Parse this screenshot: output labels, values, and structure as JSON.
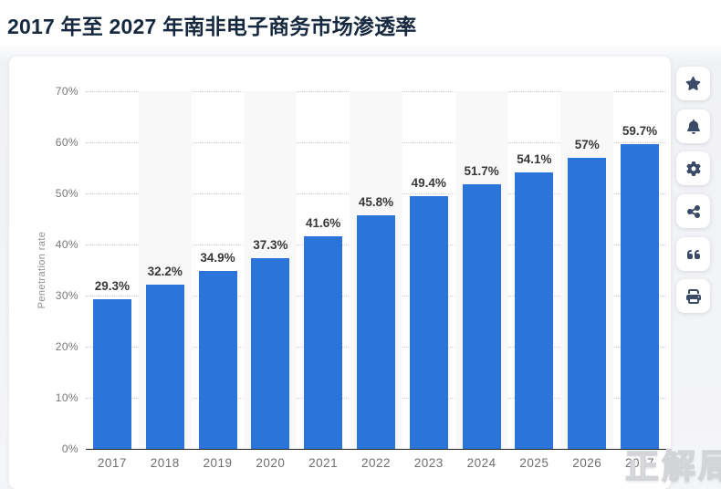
{
  "page": {
    "title": "2017 年至 2027 年南非电子商务市场渗透率"
  },
  "chart_data": {
    "type": "bar",
    "title": "2017 年至 2027 年南非电子商务市场渗透率",
    "categories": [
      "2017",
      "2018",
      "2019",
      "2020",
      "2021",
      "2022",
      "2023",
      "2024",
      "2025",
      "2026",
      "2027"
    ],
    "values": [
      29.3,
      32.2,
      34.9,
      37.3,
      41.6,
      45.8,
      49.4,
      51.7,
      54.1,
      57,
      59.7
    ],
    "value_labels": [
      "29.3%",
      "32.2%",
      "34.9%",
      "37.3%",
      "41.6%",
      "45.8%",
      "49.4%",
      "51.7%",
      "54.1%",
      "57%",
      "59.7%"
    ],
    "xlabel": "",
    "ylabel": "Penetration rate",
    "ylim": [
      0,
      70
    ],
    "ytick_step": 10,
    "ytick_labels": [
      "0%",
      "10%",
      "20%",
      "30%",
      "40%",
      "50%",
      "60%",
      "70%"
    ],
    "grid": "horizontal-dotted",
    "legend": "none",
    "bar_color": "#2b74d9",
    "stripe_color": "#f8f8f9",
    "striped_category_indices": [
      1,
      3,
      5,
      7,
      9
    ]
  },
  "toolbar": {
    "buttons": [
      {
        "name": "favorite",
        "icon": "star-icon"
      },
      {
        "name": "notifications",
        "icon": "bell-icon"
      },
      {
        "name": "settings",
        "icon": "gear-icon"
      },
      {
        "name": "share",
        "icon": "share-icon"
      },
      {
        "name": "cite",
        "icon": "quote-icon"
      },
      {
        "name": "print",
        "icon": "printer-icon"
      }
    ]
  },
  "watermark": {
    "text": "正解局"
  }
}
